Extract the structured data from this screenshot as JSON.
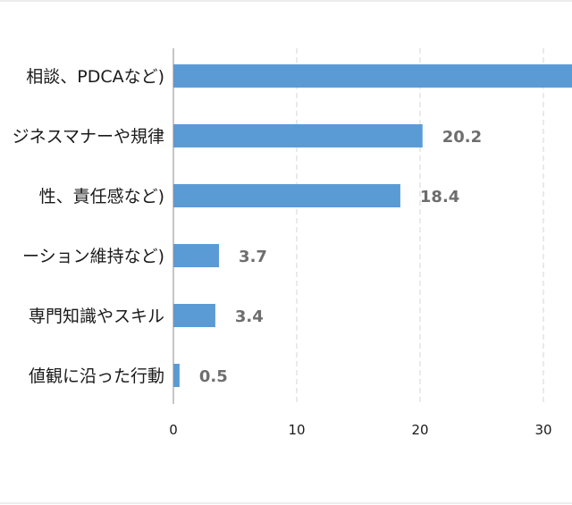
{
  "chart_data": {
    "type": "bar",
    "orientation": "horizontal",
    "categories": [
      "相談、PDCAなど)",
      "ジネスマナーや規律",
      "性、責任感など)",
      "ーション維持など)",
      "専門知識やスキル",
      "値観に沿った行動"
    ],
    "values": [
      33.0,
      20.2,
      18.4,
      3.7,
      3.4,
      0.5
    ],
    "data_labels": [
      "",
      "20.2",
      "18.4",
      "3.7",
      "3.4",
      "0.5"
    ],
    "x_ticks": [
      "0",
      "10",
      "20",
      "30"
    ],
    "xlim": [
      0,
      32
    ],
    "title": "",
    "xlabel": "",
    "ylabel": "",
    "grid": "vertical dashed",
    "legend": "none",
    "colors": {
      "bar": "#5b9bd5",
      "grid": "#d4d4d4",
      "axis": "#8c8c8c",
      "label": "#1a1a1a",
      "value": "#6e6e6e",
      "frame": "#d9d9d9"
    }
  }
}
